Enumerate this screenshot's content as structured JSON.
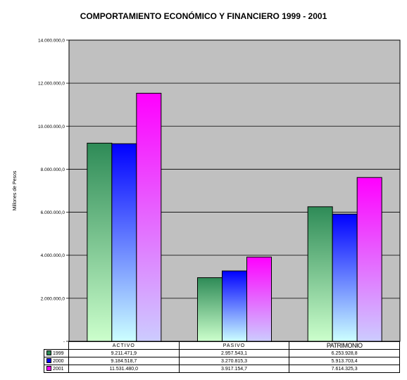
{
  "chart_data": {
    "type": "bar",
    "title": "COMPORTAMIENTO ECONÓMICO Y FINANCIERO 1999 - 2001",
    "ylabel": "Millones de Pesos",
    "ylim": [
      0,
      14000000
    ],
    "yticks": [
      {
        "value": 0,
        "label": "-"
      },
      {
        "value": 2000000,
        "label": "2.000.000,0"
      },
      {
        "value": 4000000,
        "label": "4.000.000,0"
      },
      {
        "value": 6000000,
        "label": "6.000.000,0"
      },
      {
        "value": 8000000,
        "label": "8.000.000,0"
      },
      {
        "value": 10000000,
        "label": "10.000.000,0"
      },
      {
        "value": 12000000,
        "label": "12.000.000,0"
      },
      {
        "value": 14000000,
        "label": "14.000.000,0"
      }
    ],
    "grid": true,
    "legend_position": "data table below chart",
    "categories": [
      "ACTIVO",
      "PASIVO",
      "PATRIMONIO"
    ],
    "series": [
      {
        "name": "1999",
        "values": [
          9211471.9,
          2957543.1,
          6253928.8
        ],
        "labels": [
          "9.211.471,9",
          "2.957.543,1",
          "6.253.928,8"
        ],
        "color_top": "#2e8b57",
        "color_bottom": "#ccffcc"
      },
      {
        "name": "2000",
        "values": [
          9184518.7,
          3270815.3,
          5913703.4
        ],
        "labels": [
          "9.184.518,7",
          "3.270.815,3",
          "5.913.703,4"
        ],
        "color_top": "#0000ff",
        "color_bottom": "#ccffff"
      },
      {
        "name": "2001",
        "values": [
          11531480.0,
          3917154.7,
          7614325.3
        ],
        "labels": [
          "11.531.480,0",
          "3.917.154,7",
          "7.614.325,3"
        ],
        "color_top": "#ff00ff",
        "color_bottom": "#ccccff"
      }
    ],
    "plot_background": "#c0c0c0"
  }
}
